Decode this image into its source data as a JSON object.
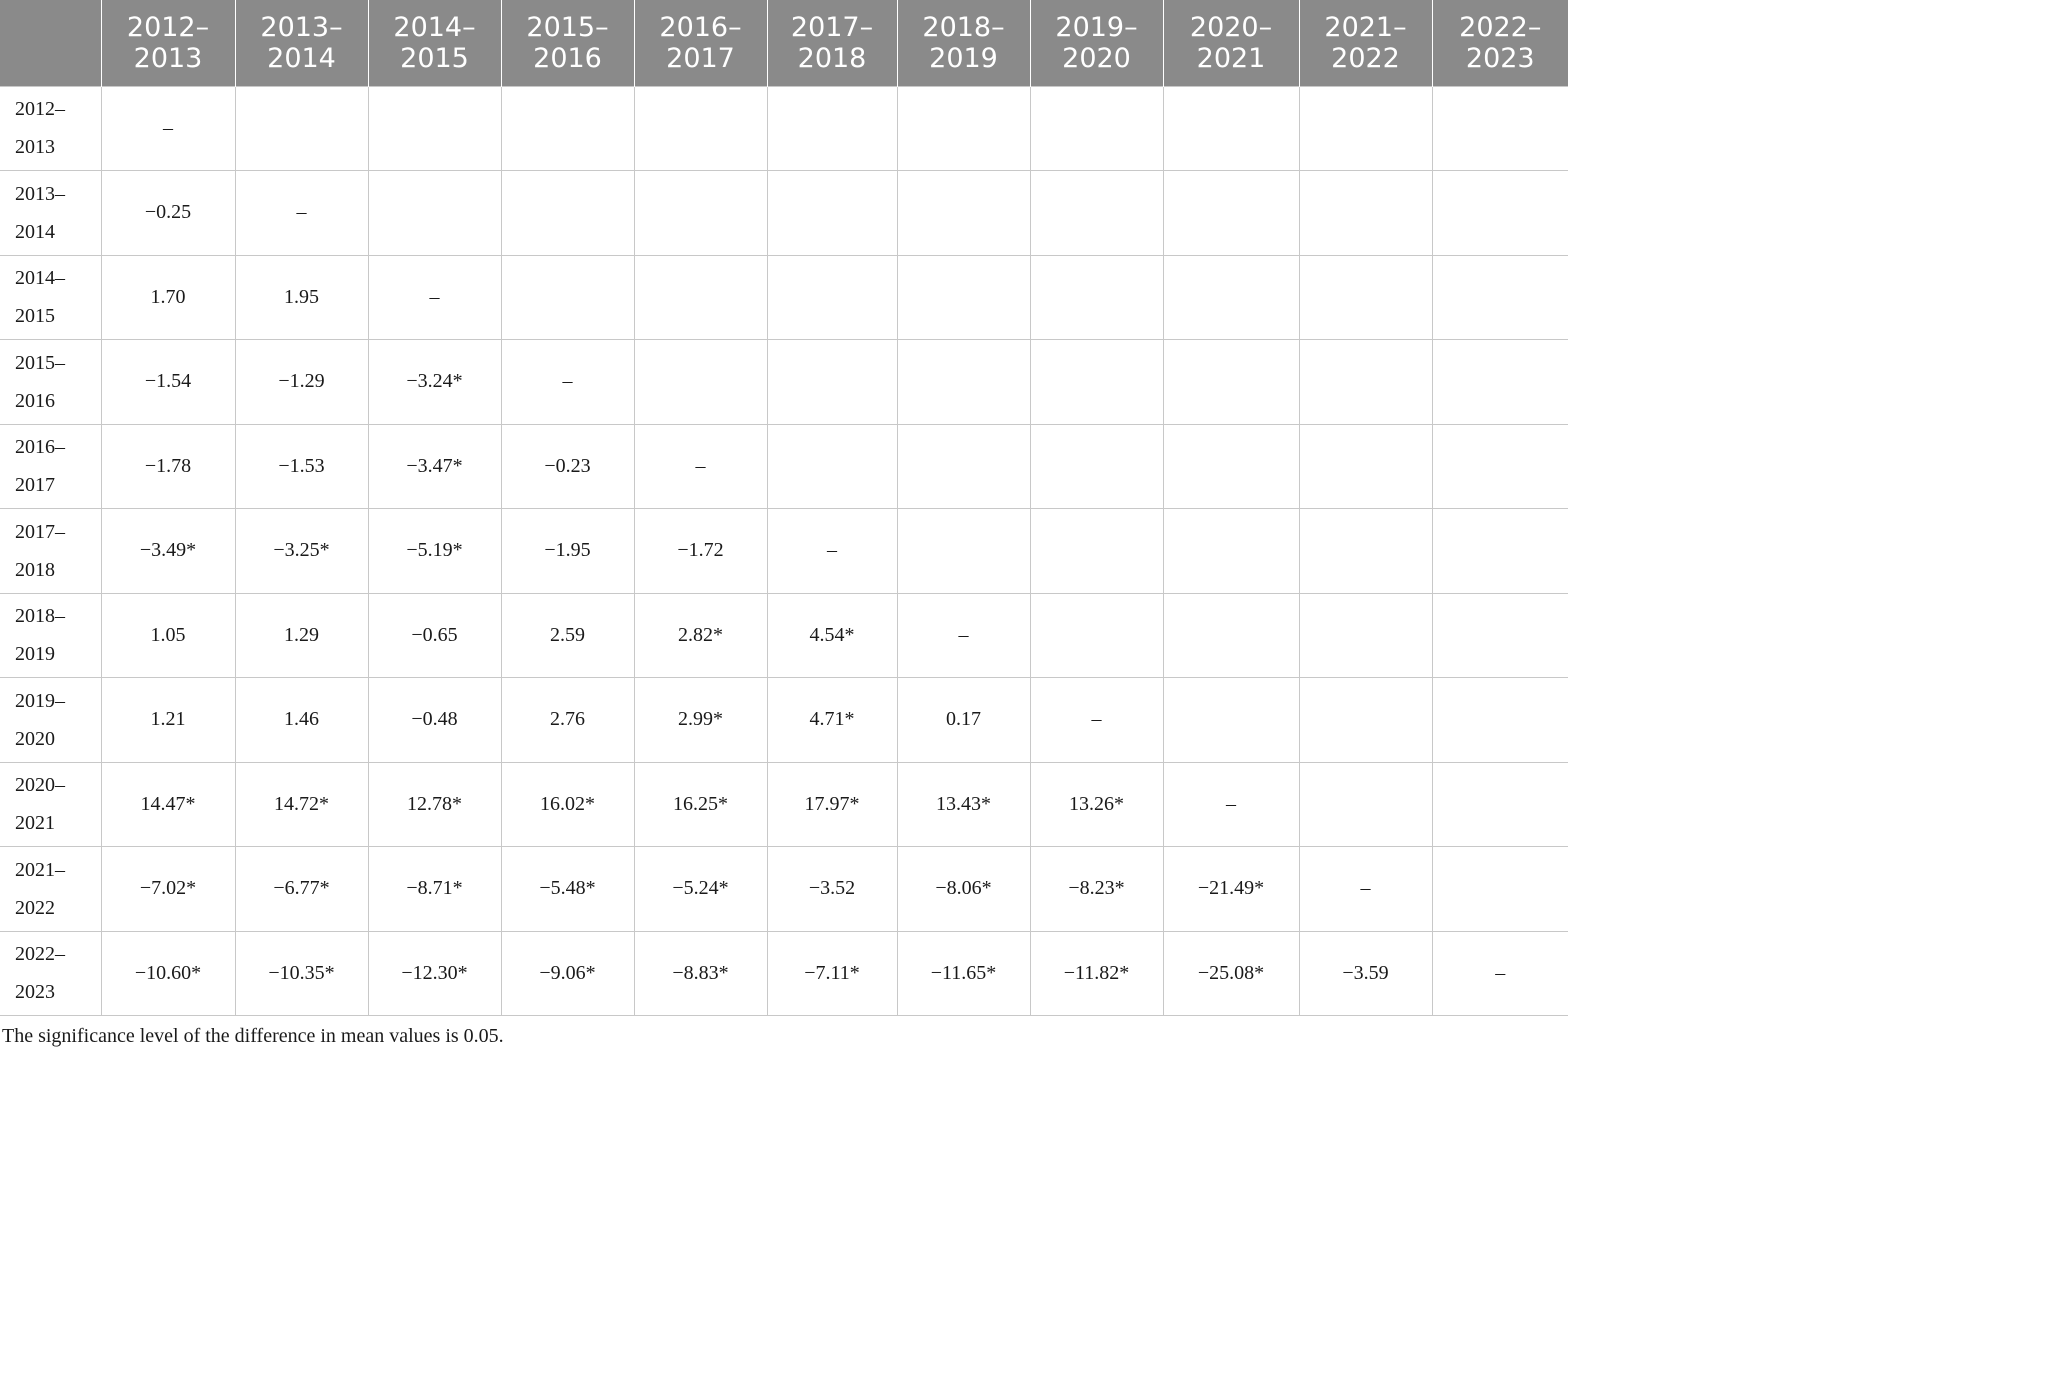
{
  "table": {
    "columns": [
      "",
      "2012–\n2013",
      "2013–\n2014",
      "2014–\n2015",
      "2015–\n2016",
      "2016–\n2017",
      "2017–\n2018",
      "2018–\n2019",
      "2019–\n2020",
      "2020–\n2021",
      "2021–\n2022",
      "2022–\n2023"
    ],
    "rows": [
      {
        "label": "2012–\n2013",
        "cells": [
          "–",
          "",
          "",
          "",
          "",
          "",
          "",
          "",
          "",
          "",
          ""
        ]
      },
      {
        "label": "2013–\n2014",
        "cells": [
          "−0.25",
          "–",
          "",
          "",
          "",
          "",
          "",
          "",
          "",
          "",
          ""
        ]
      },
      {
        "label": "2014–\n2015",
        "cells": [
          "1.70",
          "1.95",
          "–",
          "",
          "",
          "",
          "",
          "",
          "",
          "",
          ""
        ]
      },
      {
        "label": "2015–\n2016",
        "cells": [
          "−1.54",
          "−1.29",
          "−3.24*",
          "–",
          "",
          "",
          "",
          "",
          "",
          "",
          ""
        ]
      },
      {
        "label": "2016–\n2017",
        "cells": [
          "−1.78",
          "−1.53",
          "−3.47*",
          "−0.23",
          "–",
          "",
          "",
          "",
          "",
          "",
          ""
        ]
      },
      {
        "label": "2017–\n2018",
        "cells": [
          "−3.49*",
          "−3.25*",
          "−5.19*",
          "−1.95",
          "−1.72",
          "–",
          "",
          "",
          "",
          "",
          ""
        ]
      },
      {
        "label": "2018–\n2019",
        "cells": [
          "1.05",
          "1.29",
          "−0.65",
          "2.59",
          "2.82*",
          "4.54*",
          "–",
          "",
          "",
          "",
          ""
        ]
      },
      {
        "label": "2019–\n2020",
        "cells": [
          "1.21",
          "1.46",
          "−0.48",
          "2.76",
          "2.99*",
          "4.71*",
          "0.17",
          "–",
          "",
          "",
          ""
        ]
      },
      {
        "label": "2020–\n2021",
        "cells": [
          "14.47*",
          "14.72*",
          "12.78*",
          "16.02*",
          "16.25*",
          "17.97*",
          "13.43*",
          "13.26*",
          "–",
          "",
          ""
        ]
      },
      {
        "label": "2021–\n2022",
        "cells": [
          "−7.02*",
          "−6.77*",
          "−8.71*",
          "−5.48*",
          "−5.24*",
          "−3.52",
          "−8.06*",
          "−8.23*",
          "−21.49*",
          "–",
          ""
        ]
      },
      {
        "label": "2022–\n2023",
        "cells": [
          "−10.60*",
          "−10.35*",
          "−12.30*",
          "−9.06*",
          "−8.83*",
          "−7.11*",
          "−11.65*",
          "−11.82*",
          "−25.08*",
          "−3.59",
          "–"
        ]
      }
    ]
  },
  "footnote": "The significance level of the difference in mean values is 0.05.",
  "colors": {
    "header_bg": "#8a8a8a",
    "header_text": "#ffffff",
    "grid": "#c8c8c8",
    "text": "#1a1a1a"
  }
}
